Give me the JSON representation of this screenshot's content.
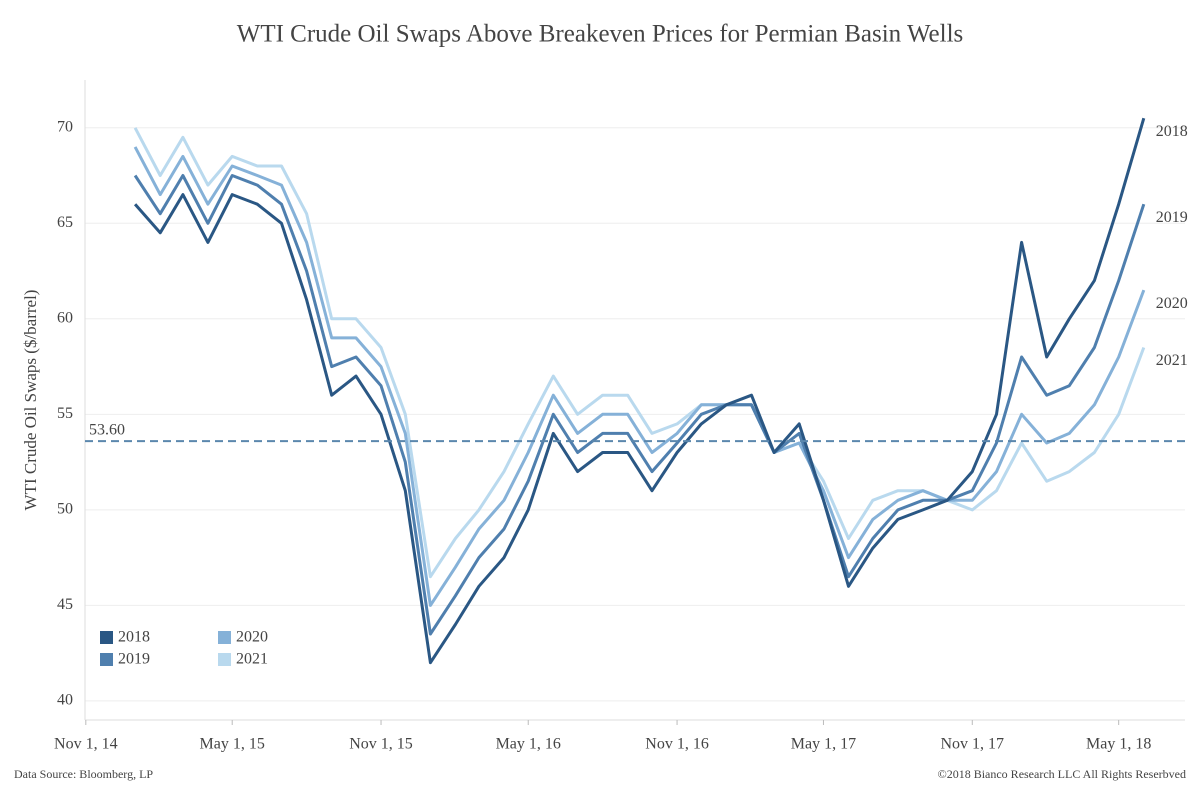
{
  "chart_data": {
    "type": "line",
    "title": "WTI Crude Oil Swaps Above Breakeven Prices for Permian Basin Wells",
    "y_label": "WTI Crude Oil Swaps ($/barrel)",
    "source": "Data Source: Bloomberg, LP",
    "copyright": "©2018 Bianco Research LLC  All Rights Reserbved",
    "x": [
      "2015-01-01",
      "2015-02-01",
      "2015-03-01",
      "2015-04-01",
      "2015-05-01",
      "2015-06-01",
      "2015-07-01",
      "2015-08-01",
      "2015-09-01",
      "2015-10-01",
      "2015-11-01",
      "2015-12-01",
      "2016-01-01",
      "2016-02-01",
      "2016-03-01",
      "2016-04-01",
      "2016-05-01",
      "2016-06-01",
      "2016-07-01",
      "2016-08-01",
      "2016-09-01",
      "2016-10-01",
      "2016-11-01",
      "2016-12-01",
      "2017-01-01",
      "2017-02-01",
      "2017-03-01",
      "2017-04-01",
      "2017-05-01",
      "2017-06-01",
      "2017-07-01",
      "2017-08-01",
      "2017-09-01",
      "2017-10-01",
      "2017-11-01",
      "2017-12-01",
      "2018-01-01",
      "2018-02-01",
      "2018-03-01",
      "2018-04-01",
      "2018-05-01",
      "2018-06-01"
    ],
    "series": [
      {
        "name": "2018",
        "color": "#2a5784",
        "values": [
          66,
          64.5,
          66.5,
          64,
          66.5,
          66,
          65,
          61,
          56,
          57,
          55,
          51,
          42,
          44,
          46,
          47.5,
          50,
          54,
          52,
          53,
          53,
          51,
          53,
          54.5,
          55.5,
          56,
          53,
          54.5,
          50.5,
          46,
          48,
          49.5,
          50,
          50.5,
          52,
          55,
          64,
          58,
          60,
          62,
          66,
          70.5
        ]
      },
      {
        "name": "2019",
        "color": "#4f7fae",
        "values": [
          67.5,
          65.5,
          67.5,
          65,
          67.5,
          67,
          66,
          62.5,
          57.5,
          58,
          56.5,
          52.5,
          43.5,
          45.5,
          47.5,
          49,
          51.5,
          55,
          53,
          54,
          54,
          52,
          53.5,
          55,
          55.5,
          55.5,
          53,
          54,
          50.5,
          46.5,
          48.5,
          50,
          50.5,
          50.5,
          51,
          53.5,
          58,
          56,
          56.5,
          58.5,
          62,
          66
        ]
      },
      {
        "name": "2020",
        "color": "#85b1d8",
        "values": [
          69,
          66.5,
          68.5,
          66,
          68,
          67.5,
          67,
          64,
          59,
          59,
          57.5,
          54,
          45,
          47,
          49,
          50.5,
          53,
          56,
          54,
          55,
          55,
          53,
          54,
          55.5,
          55.5,
          55.5,
          53,
          53.5,
          51,
          47.5,
          49.5,
          50.5,
          51,
          50.5,
          50.5,
          52,
          55,
          53.5,
          54,
          55.5,
          58,
          61.5
        ]
      },
      {
        "name": "2021",
        "color": "#b9d9ee",
        "values": [
          70,
          67.5,
          69.5,
          67,
          68.5,
          68,
          68,
          65.5,
          60,
          60,
          58.5,
          55,
          46.5,
          48.5,
          50,
          52,
          54.5,
          57,
          55,
          56,
          56,
          54,
          54.5,
          55.5,
          55.5,
          55.5,
          53,
          53.5,
          51.5,
          48.5,
          50.5,
          51,
          51,
          50.5,
          50,
          51,
          53.5,
          51.5,
          52,
          53,
          55,
          58.5
        ]
      }
    ],
    "reference_line": {
      "value": 53.6,
      "label": "53.60",
      "color": "#5b87ad"
    },
    "xlim": [
      "2014-10-31",
      "2018-07-22"
    ],
    "xticks": [
      {
        "value": "2014-11-01",
        "label": "Nov 1, 14"
      },
      {
        "value": "2015-05-01",
        "label": "May 1, 15"
      },
      {
        "value": "2015-11-01",
        "label": "Nov 1, 15"
      },
      {
        "value": "2016-05-01",
        "label": "May 1, 16"
      },
      {
        "value": "2016-11-01",
        "label": "Nov 1, 16"
      },
      {
        "value": "2017-05-01",
        "label": "May 1, 17"
      },
      {
        "value": "2017-11-01",
        "label": "Nov 1, 17"
      },
      {
        "value": "2018-05-01",
        "label": "May 1, 18"
      }
    ],
    "ylim": [
      39,
      72.5
    ],
    "yticks": [
      40,
      45,
      50,
      55,
      60,
      65,
      70
    ],
    "grid": true,
    "legend": "lower left"
  }
}
